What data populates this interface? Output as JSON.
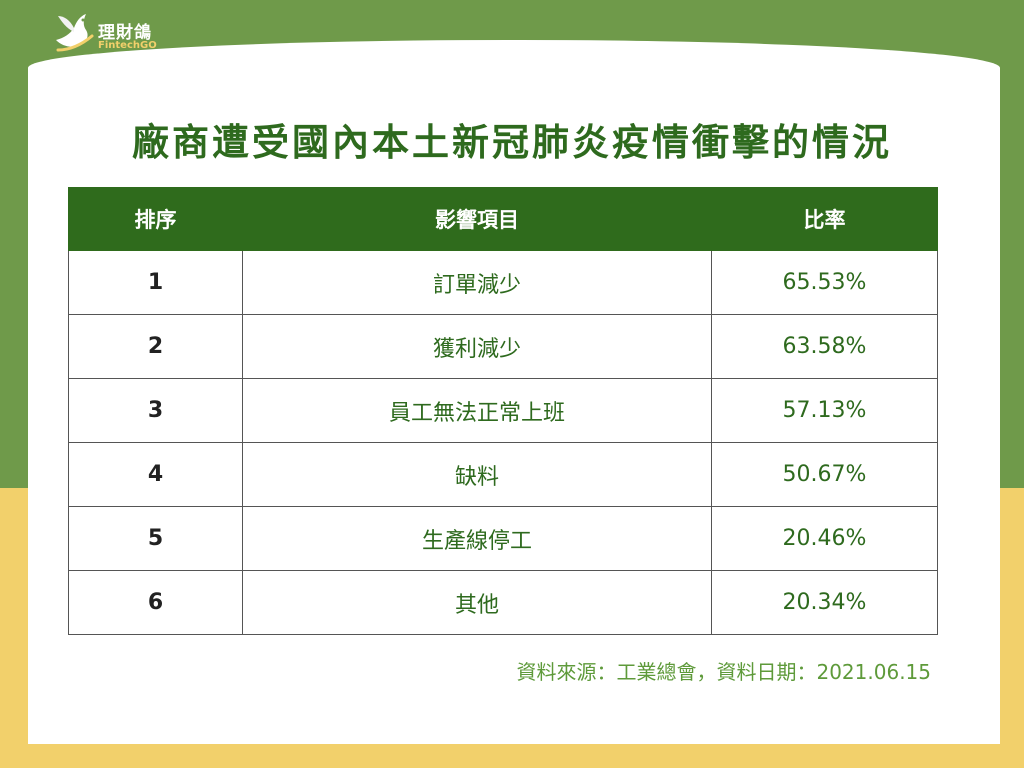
{
  "brand": {
    "name": "理財鴿",
    "subtitle": "FintechGO",
    "icon": "dove-icon"
  },
  "title": "廠商遭受國內本土新冠肺炎疫情衝擊的情況",
  "chart_data": {
    "type": "table",
    "columns": [
      "排序",
      "影響項目",
      "比率"
    ],
    "rows": [
      {
        "rank": "1",
        "item": "訂單減少",
        "ratio": "65.53%"
      },
      {
        "rank": "2",
        "item": "獲利減少",
        "ratio": "63.58%"
      },
      {
        "rank": "3",
        "item": "員工無法正常上班",
        "ratio": "57.13%"
      },
      {
        "rank": "4",
        "item": "缺料",
        "ratio": "50.67%"
      },
      {
        "rank": "5",
        "item": "生產線停工",
        "ratio": "20.46%"
      },
      {
        "rank": "6",
        "item": "其他",
        "ratio": "20.34%"
      }
    ]
  },
  "source": "資料來源：工業總會，資料日期：2021.06.15",
  "colors": {
    "header_green": "#2f6b1c",
    "title_green": "#2e6a1e",
    "background_green": "#6f9a4a",
    "background_yellow": "#f2d06b"
  }
}
